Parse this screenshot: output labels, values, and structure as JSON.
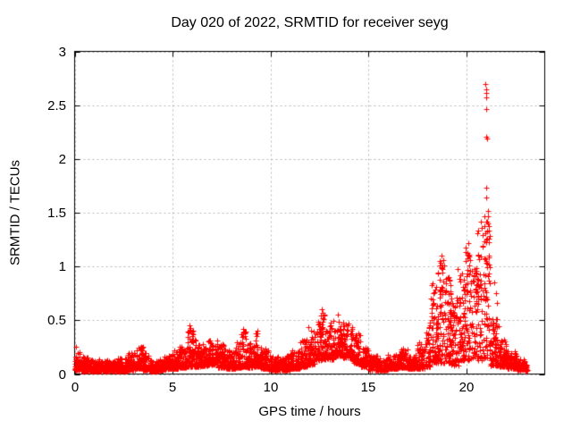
{
  "chart_data": {
    "type": "scatter",
    "title": "Day 020 of 2022, SRMTID for receiver seyg",
    "xlabel": "GPS time / hours",
    "ylabel": "SRMTID / TECUs",
    "xlim": [
      0,
      24
    ],
    "ylim": [
      0,
      3
    ],
    "xticks": [
      [
        0,
        "0"
      ],
      [
        5,
        "5"
      ],
      [
        10,
        "10"
      ],
      [
        15,
        "15"
      ],
      [
        20,
        "20"
      ]
    ],
    "yticks": [
      [
        0,
        "0"
      ],
      [
        0.5,
        "0.5"
      ],
      [
        1,
        "1"
      ],
      [
        1.5,
        "1.5"
      ],
      [
        2,
        "2"
      ],
      [
        2.5,
        "2.5"
      ],
      [
        3,
        "3"
      ]
    ],
    "grid": true,
    "legend": "none",
    "marker": "plus",
    "marker_size_px": 7,
    "marker_color": "#ff0000",
    "grid_color": "#b6b6b6",
    "frame_color": "#000000",
    "series": [
      {
        "name": "SRMTID",
        "seed": 1337,
        "envelope_format": [
          "t_start_h",
          "t_end_h",
          "value_min",
          "value_max",
          "n_points"
        ],
        "envelope": [
          [
            0.0,
            0.3,
            0.04,
            0.22,
            60
          ],
          [
            0.3,
            0.7,
            0.03,
            0.16,
            80
          ],
          [
            0.7,
            1.2,
            0.03,
            0.13,
            95
          ],
          [
            1.2,
            1.7,
            0.03,
            0.14,
            95
          ],
          [
            1.7,
            2.2,
            0.03,
            0.12,
            95
          ],
          [
            2.2,
            2.7,
            0.03,
            0.15,
            95
          ],
          [
            2.7,
            3.1,
            0.04,
            0.2,
            75
          ],
          [
            3.1,
            3.5,
            0.05,
            0.26,
            75
          ],
          [
            3.5,
            3.8,
            0.04,
            0.2,
            60
          ],
          [
            3.8,
            4.3,
            0.03,
            0.13,
            90
          ],
          [
            4.3,
            4.8,
            0.04,
            0.16,
            90
          ],
          [
            4.8,
            5.3,
            0.05,
            0.22,
            90
          ],
          [
            5.3,
            5.7,
            0.06,
            0.26,
            70
          ],
          [
            5.7,
            6.1,
            0.07,
            0.42,
            70
          ],
          [
            6.1,
            6.4,
            0.07,
            0.33,
            55
          ],
          [
            6.4,
            6.8,
            0.08,
            0.28,
            70
          ],
          [
            6.8,
            7.3,
            0.09,
            0.33,
            90
          ],
          [
            7.3,
            7.7,
            0.06,
            0.28,
            70
          ],
          [
            7.7,
            8.2,
            0.05,
            0.22,
            90
          ],
          [
            8.2,
            8.5,
            0.06,
            0.3,
            55
          ],
          [
            8.5,
            8.8,
            0.07,
            0.4,
            55
          ],
          [
            8.8,
            9.1,
            0.06,
            0.3,
            55
          ],
          [
            9.1,
            9.5,
            0.07,
            0.38,
            70
          ],
          [
            9.5,
            9.9,
            0.05,
            0.24,
            70
          ],
          [
            9.9,
            10.5,
            0.04,
            0.17,
            110
          ],
          [
            10.5,
            11.0,
            0.04,
            0.17,
            90
          ],
          [
            11.0,
            11.5,
            0.05,
            0.22,
            90
          ],
          [
            11.5,
            11.9,
            0.07,
            0.32,
            70
          ],
          [
            11.9,
            12.3,
            0.09,
            0.42,
            70
          ],
          [
            12.3,
            12.8,
            0.13,
            0.58,
            85
          ],
          [
            12.8,
            13.2,
            0.14,
            0.48,
            70
          ],
          [
            13.2,
            13.7,
            0.17,
            0.52,
            85
          ],
          [
            13.7,
            14.2,
            0.15,
            0.47,
            85
          ],
          [
            14.2,
            14.6,
            0.1,
            0.38,
            70
          ],
          [
            14.6,
            15.0,
            0.07,
            0.25,
            70
          ],
          [
            15.0,
            15.5,
            0.04,
            0.18,
            85
          ],
          [
            15.5,
            16.0,
            0.04,
            0.15,
            85
          ],
          [
            16.0,
            16.5,
            0.05,
            0.18,
            85
          ],
          [
            16.5,
            17.0,
            0.06,
            0.25,
            85
          ],
          [
            17.0,
            17.5,
            0.05,
            0.2,
            85
          ],
          [
            17.5,
            17.9,
            0.05,
            0.3,
            65
          ],
          [
            17.9,
            18.2,
            0.07,
            0.5,
            55
          ],
          [
            18.2,
            18.5,
            0.1,
            0.85,
            60
          ],
          [
            18.5,
            18.9,
            0.1,
            1.05,
            75
          ],
          [
            18.9,
            19.2,
            0.1,
            0.9,
            60
          ],
          [
            19.2,
            19.6,
            0.08,
            0.75,
            65
          ],
          [
            19.6,
            19.9,
            0.12,
            0.95,
            55
          ],
          [
            19.9,
            20.3,
            0.12,
            1.15,
            70
          ],
          [
            20.3,
            20.55,
            0.15,
            1.0,
            40
          ],
          [
            20.55,
            20.9,
            0.12,
            1.38,
            60
          ],
          [
            20.9,
            21.2,
            0.15,
            1.45,
            65
          ],
          [
            21.2,
            21.65,
            0.08,
            0.55,
            75
          ],
          [
            21.65,
            22.1,
            0.07,
            0.35,
            75
          ],
          [
            22.1,
            22.6,
            0.05,
            0.22,
            85
          ],
          [
            22.6,
            23.0,
            0.04,
            0.14,
            75
          ],
          [
            23.0,
            23.1,
            0.03,
            0.09,
            25
          ]
        ],
        "spikes_format": [
          "t_h",
          "value_TECU"
        ],
        "spikes": [
          [
            0.06,
            0.25
          ],
          [
            5.86,
            0.45
          ],
          [
            5.93,
            0.43
          ],
          [
            6.02,
            0.38
          ],
          [
            8.62,
            0.42
          ],
          [
            9.32,
            0.4
          ],
          [
            11.95,
            0.44
          ],
          [
            12.6,
            0.6
          ],
          [
            12.66,
            0.57
          ],
          [
            13.45,
            0.55
          ],
          [
            14.0,
            0.47
          ],
          [
            18.62,
            1.05
          ],
          [
            18.72,
            1.1
          ],
          [
            18.8,
            1.06
          ],
          [
            19.55,
            0.98
          ],
          [
            19.95,
            1.18
          ],
          [
            20.1,
            1.22
          ],
          [
            20.62,
            1.33
          ],
          [
            20.72,
            1.42
          ],
          [
            20.9,
            1.47
          ],
          [
            20.97,
            2.7
          ],
          [
            21.0,
            2.65
          ],
          [
            21.02,
            2.61
          ],
          [
            21.03,
            2.57
          ],
          [
            21.0,
            2.46
          ],
          [
            21.02,
            2.21
          ],
          [
            21.05,
            2.19
          ],
          [
            21.0,
            1.73
          ],
          [
            21.03,
            1.64
          ],
          [
            21.08,
            1.52
          ],
          [
            21.1,
            1.47
          ],
          [
            21.12,
            1.4
          ],
          [
            21.15,
            1.33
          ],
          [
            21.18,
            1.28
          ],
          [
            21.42,
            0.85
          ],
          [
            21.5,
            0.75
          ],
          [
            21.56,
            0.66
          ]
        ]
      }
    ]
  }
}
